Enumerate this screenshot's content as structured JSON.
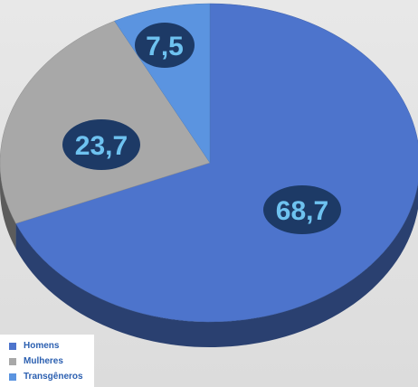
{
  "chart_data": {
    "type": "pie",
    "categories": [
      "Homens",
      "Mulheres",
      "Transgêneros"
    ],
    "values": [
      68.7,
      23.7,
      7.5
    ],
    "value_labels": [
      "68,7",
      "23,7",
      "7,5"
    ],
    "colors": [
      "#4d74cc",
      "#a8a8a8",
      "#5b94e0"
    ],
    "legend_position": "bottom-left",
    "title": "",
    "style": "3d"
  }
}
